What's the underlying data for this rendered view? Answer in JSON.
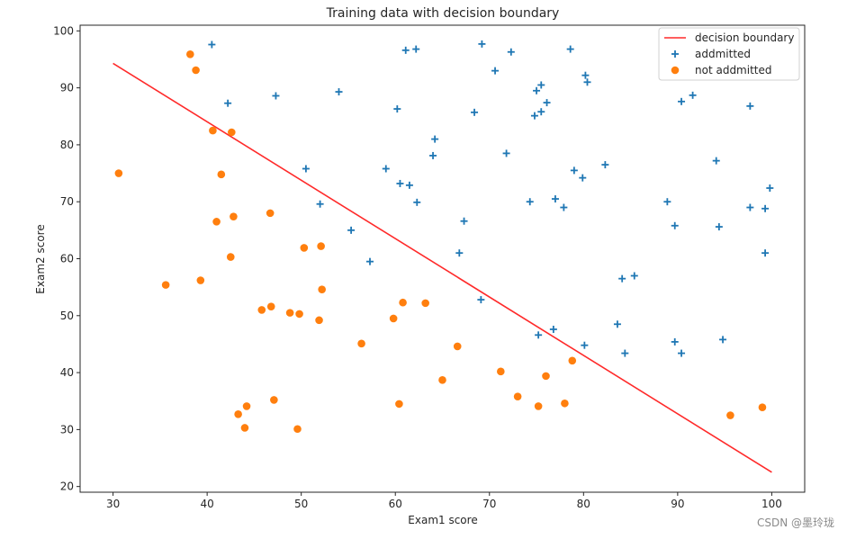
{
  "watermark": "CSDN @墨玲珑",
  "chart_data": {
    "type": "scatter",
    "title": "Training data with decision boundary",
    "xlabel": "Exam1 score",
    "ylabel": "Exam2 score",
    "xlim": [
      26.5,
      103.5
    ],
    "ylim": [
      19,
      101
    ],
    "xticks": [
      30,
      40,
      50,
      60,
      70,
      80,
      90,
      100
    ],
    "yticks": [
      20,
      30,
      40,
      50,
      60,
      70,
      80,
      90,
      100
    ],
    "legend_position": "top-right",
    "colors": {
      "line": "#ff2a2a",
      "admitted": "#1f77b4",
      "not_admitted": "#ff7f0e"
    },
    "series": [
      {
        "name": "decision boundary",
        "kind": "line",
        "x": [
          30,
          100
        ],
        "y": [
          94.3,
          22.5
        ]
      },
      {
        "name": "addmitted",
        "kind": "scatter",
        "marker": "+",
        "points": [
          [
            40.5,
            97.6
          ],
          [
            42.2,
            87.3
          ],
          [
            47.3,
            88.6
          ],
          [
            54.0,
            89.3
          ],
          [
            60.2,
            86.3
          ],
          [
            61.1,
            96.6
          ],
          [
            62.2,
            96.8
          ],
          [
            69.2,
            97.7
          ],
          [
            70.6,
            93.0
          ],
          [
            72.3,
            96.3
          ],
          [
            78.6,
            96.8
          ],
          [
            80.2,
            92.2
          ],
          [
            80.4,
            91.0
          ],
          [
            75.0,
            89.5
          ],
          [
            75.5,
            90.5
          ],
          [
            76.1,
            87.4
          ],
          [
            74.8,
            85.1
          ],
          [
            75.5,
            85.8
          ],
          [
            68.4,
            85.7
          ],
          [
            64.2,
            81.0
          ],
          [
            64.0,
            78.1
          ],
          [
            71.8,
            78.5
          ],
          [
            59.0,
            75.8
          ],
          [
            50.5,
            75.8
          ],
          [
            60.5,
            73.2
          ],
          [
            61.5,
            72.9
          ],
          [
            52.0,
            69.6
          ],
          [
            62.3,
            69.9
          ],
          [
            74.3,
            70.0
          ],
          [
            77.0,
            70.5
          ],
          [
            77.9,
            69.0
          ],
          [
            79.0,
            75.5
          ],
          [
            79.9,
            74.2
          ],
          [
            82.3,
            76.5
          ],
          [
            67.3,
            66.6
          ],
          [
            55.3,
            65.0
          ],
          [
            66.8,
            61.0
          ],
          [
            57.3,
            59.5
          ],
          [
            69.1,
            52.8
          ],
          [
            75.2,
            46.6
          ],
          [
            76.8,
            47.6
          ],
          [
            80.1,
            44.8
          ],
          [
            83.6,
            48.5
          ],
          [
            84.1,
            56.5
          ],
          [
            85.4,
            57.0
          ],
          [
            84.4,
            43.4
          ],
          [
            88.9,
            70.0
          ],
          [
            89.7,
            65.8
          ],
          [
            90.4,
            87.6
          ],
          [
            91.6,
            88.7
          ],
          [
            94.1,
            77.2
          ],
          [
            94.4,
            65.6
          ],
          [
            97.7,
            86.8
          ],
          [
            97.7,
            69.0
          ],
          [
            99.3,
            68.8
          ],
          [
            99.8,
            72.4
          ],
          [
            99.3,
            61.0
          ],
          [
            89.7,
            45.4
          ],
          [
            90.4,
            43.4
          ],
          [
            94.8,
            45.8
          ]
        ]
      },
      {
        "name": "not addmitted",
        "kind": "scatter",
        "marker": "o",
        "points": [
          [
            30.6,
            75.0
          ],
          [
            35.6,
            55.4
          ],
          [
            38.2,
            95.9
          ],
          [
            38.8,
            93.1
          ],
          [
            39.3,
            56.2
          ],
          [
            40.6,
            82.5
          ],
          [
            41.0,
            66.5
          ],
          [
            41.5,
            74.8
          ],
          [
            42.6,
            82.2
          ],
          [
            42.8,
            67.4
          ],
          [
            42.5,
            60.3
          ],
          [
            43.3,
            32.7
          ],
          [
            44.0,
            30.3
          ],
          [
            44.2,
            34.1
          ],
          [
            45.8,
            51.0
          ],
          [
            46.7,
            68.0
          ],
          [
            46.8,
            51.6
          ],
          [
            47.1,
            35.2
          ],
          [
            48.8,
            50.5
          ],
          [
            49.6,
            30.1
          ],
          [
            49.8,
            50.3
          ],
          [
            50.3,
            61.9
          ],
          [
            51.9,
            49.2
          ],
          [
            52.1,
            62.2
          ],
          [
            52.2,
            54.6
          ],
          [
            56.4,
            45.1
          ],
          [
            59.8,
            49.5
          ],
          [
            60.4,
            34.5
          ],
          [
            60.8,
            52.3
          ],
          [
            63.2,
            52.2
          ],
          [
            65.0,
            38.7
          ],
          [
            66.6,
            44.6
          ],
          [
            71.2,
            40.2
          ],
          [
            73.0,
            35.8
          ],
          [
            75.2,
            34.1
          ],
          [
            76.0,
            39.4
          ],
          [
            78.0,
            34.6
          ],
          [
            78.8,
            42.1
          ],
          [
            95.6,
            32.5
          ],
          [
            99.0,
            33.9
          ]
        ]
      }
    ]
  }
}
